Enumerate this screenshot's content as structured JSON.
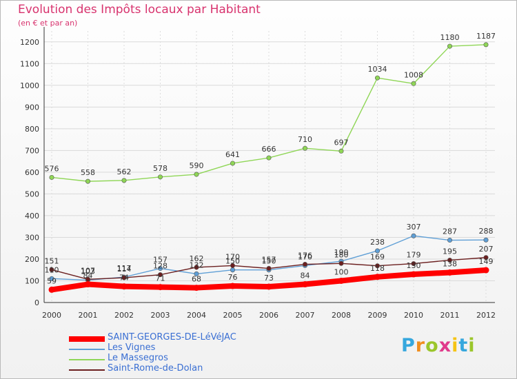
{
  "chart_data": {
    "type": "line",
    "title": "Evolution des Impôts locaux par Habitant",
    "subtitle": "(en € et par an)",
    "x": [
      "2000",
      "2001",
      "2002",
      "2003",
      "2004",
      "2005",
      "2006",
      "2007",
      "2008",
      "2009",
      "2010",
      "2011",
      "2012"
    ],
    "yticks": [
      "0",
      "100",
      "200",
      "300",
      "400",
      "500",
      "600",
      "700",
      "800",
      "900",
      "1000",
      "1100",
      "1200"
    ],
    "ylim": [
      0,
      1250
    ],
    "grid": true,
    "legend_position": "bottom-left",
    "series": [
      {
        "name": "SAINT-GEORGES-DE-LéVéJAC",
        "color": "#ff0000",
        "values": [
          59,
          84,
          74,
          71,
          68,
          76,
          73,
          84,
          100,
          118,
          130,
          138,
          149
        ]
      },
      {
        "name": "Les Vignes",
        "color": "#5f9fd6",
        "values": [
          110,
          103,
          117,
          157,
          132,
          150,
          150,
          170,
          190,
          238,
          307,
          287,
          288
        ]
      },
      {
        "name": "Le Massegros",
        "color": "#8fd656",
        "values": [
          576,
          558,
          562,
          578,
          590,
          641,
          666,
          710,
          697,
          1034,
          1008,
          1180,
          1187
        ]
      },
      {
        "name": "Saint-Rome-de-Dolan",
        "color": "#6b1f1f",
        "values": [
          151,
          107,
          114,
          128,
          162,
          170,
          157,
          176,
          180,
          169,
          179,
          195,
          207
        ]
      }
    ]
  },
  "brand": {
    "letters": [
      "P",
      "r",
      "o",
      "x",
      "i",
      "t",
      "i"
    ],
    "colors": [
      "#36a7dd",
      "#f08e1e",
      "#9bc62b",
      "#e03a8b",
      "#f5c415",
      "#36a7dd",
      "#9bc62b"
    ]
  }
}
